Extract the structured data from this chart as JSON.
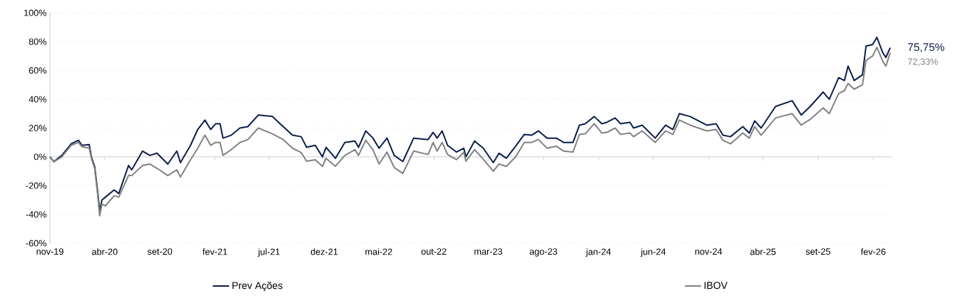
{
  "chart_data": {
    "type": "line",
    "x": [
      "2019-11-01",
      "2019-11-12",
      "2019-12-04",
      "2019-12-30",
      "2020-01-19",
      "2020-01-29",
      "2020-02-18",
      "2020-02-24",
      "2020-03-04",
      "2020-03-12",
      "2020-03-18",
      "2020-03-24",
      "2020-04-03",
      "2020-04-27",
      "2020-05-10",
      "2020-06-06",
      "2020-06-15",
      "2020-07-15",
      "2020-08-04",
      "2020-08-24",
      "2020-09-23",
      "2020-10-18",
      "2020-10-28",
      "2020-11-25",
      "2020-12-15",
      "2021-01-04",
      "2021-01-20",
      "2021-02-03",
      "2021-02-15",
      "2021-02-23",
      "2021-03-18",
      "2021-04-11",
      "2021-05-03",
      "2021-06-01",
      "2021-07-10",
      "2021-08-09",
      "2021-09-04",
      "2021-09-28",
      "2021-10-13",
      "2021-11-06",
      "2021-11-26",
      "2021-12-06",
      "2022-01-01",
      "2022-01-27",
      "2022-02-24",
      "2022-03-06",
      "2022-03-26",
      "2022-04-15",
      "2022-05-02",
      "2022-05-24",
      "2022-06-13",
      "2022-07-07",
      "2022-08-06",
      "2022-09-15",
      "2022-09-29",
      "2022-10-10",
      "2022-10-24",
      "2022-11-08",
      "2022-12-03",
      "2022-12-23",
      "2022-12-29",
      "2023-01-22",
      "2023-02-15",
      "2023-03-15",
      "2023-03-31",
      "2023-04-20",
      "2023-05-16",
      "2023-06-09",
      "2023-06-29",
      "2023-07-18",
      "2023-08-11",
      "2023-09-06",
      "2023-09-26",
      "2023-10-22",
      "2023-11-09",
      "2023-11-25",
      "2023-12-20",
      "2024-01-10",
      "2024-01-24",
      "2024-02-16",
      "2024-03-02",
      "2024-03-28",
      "2024-04-07",
      "2024-05-01",
      "2024-06-06",
      "2024-07-05",
      "2024-07-25",
      "2024-08-12",
      "2024-09-11",
      "2024-10-27",
      "2024-11-22",
      "2024-12-11",
      "2025-01-01",
      "2025-02-04",
      "2025-02-22",
      "2025-03-09",
      "2025-03-27",
      "2025-05-06",
      "2025-06-21",
      "2025-07-16",
      "2025-08-10",
      "2025-09-15",
      "2025-10-02",
      "2025-10-28",
      "2025-11-13",
      "2025-11-23",
      "2025-12-10",
      "2026-01-02",
      "2026-01-12",
      "2026-01-30",
      "2026-02-11",
      "2026-02-28",
      "2026-03-08",
      "2026-03-20"
    ],
    "series": [
      {
        "name": "Prev Ações",
        "color": "#0b1f4b",
        "values": [
          0,
          -3.3,
          1,
          9,
          11.5,
          8,
          8.5,
          0,
          -6.6,
          -23,
          -38,
          -30,
          -28,
          -23,
          -25.5,
          -6,
          -9,
          4,
          1,
          2.5,
          -5,
          4,
          -4,
          8,
          19,
          25.5,
          19,
          23,
          23,
          13,
          15,
          20,
          21,
          29,
          28,
          21,
          15,
          14,
          6.6,
          8,
          0,
          6.6,
          -1,
          10,
          11,
          6.6,
          18,
          13,
          6,
          13,
          1,
          -3.3,
          13,
          12,
          17,
          13,
          18,
          8,
          3.3,
          6,
          0,
          11,
          6,
          -4,
          2.5,
          -1,
          7.4,
          15.6,
          15,
          18,
          13,
          13,
          10,
          10,
          22,
          23,
          28,
          23,
          24,
          27,
          23,
          24,
          20,
          22,
          13,
          22,
          19,
          30,
          28,
          22,
          23,
          15,
          14,
          21,
          16.5,
          25,
          20,
          35,
          39,
          29,
          35,
          45,
          40,
          55,
          53,
          63,
          53,
          57,
          77,
          78,
          83,
          72,
          69,
          75.75
        ]
      },
      {
        "name": "IBOV",
        "color": "#828282",
        "values": [
          0,
          -3.5,
          0,
          8,
          10,
          7,
          6,
          -1,
          -8,
          -25,
          -41,
          -33,
          -34,
          -27,
          -28,
          -13,
          -13,
          -6,
          -5,
          -8,
          -13,
          -9,
          -14,
          -2,
          6,
          15,
          8,
          10,
          10,
          1,
          5,
          10,
          12,
          20,
          16,
          12,
          6,
          3,
          -3,
          -2,
          -6.6,
          -1,
          -6.6,
          1,
          5,
          1,
          11.5,
          5,
          -5,
          3.3,
          -7.4,
          -11.5,
          4,
          1.6,
          10,
          4,
          10,
          1.6,
          -2,
          3.3,
          -3,
          5,
          -1.6,
          -10,
          -5,
          -6.6,
          0,
          10,
          10,
          12,
          6,
          7.4,
          4,
          3.3,
          15.6,
          16,
          23,
          16.5,
          17,
          20,
          15.6,
          16.5,
          14,
          18,
          10,
          18,
          15.6,
          25.5,
          22,
          18,
          19,
          11.5,
          9,
          16.5,
          13,
          21,
          15,
          27,
          30,
          22,
          26,
          34,
          30,
          44,
          46,
          51,
          47,
          50,
          67,
          70,
          76,
          66,
          63,
          72.33
        ]
      }
    ],
    "xlim": [
      "2019-11-01",
      "2026-03-24"
    ],
    "xticks": [
      {
        "value": "2019-11-01",
        "label": "nov-19"
      },
      {
        "value": "2020-04-01",
        "label": "abr-20"
      },
      {
        "value": "2020-09-01",
        "label": "set-20"
      },
      {
        "value": "2021-02-01",
        "label": "fev-21"
      },
      {
        "value": "2021-07-01",
        "label": "jul-21"
      },
      {
        "value": "2021-12-01",
        "label": "dez-21"
      },
      {
        "value": "2022-05-01",
        "label": "mai-22"
      },
      {
        "value": "2022-10-01",
        "label": "out-22"
      },
      {
        "value": "2023-03-01",
        "label": "mar-23"
      },
      {
        "value": "2023-08-01",
        "label": "ago-23"
      },
      {
        "value": "2024-01-01",
        "label": "jan-24"
      },
      {
        "value": "2024-06-01",
        "label": "jun-24"
      },
      {
        "value": "2024-11-01",
        "label": "nov-24"
      },
      {
        "value": "2025-04-01",
        "label": "abr-25"
      },
      {
        "value": "2025-09-01",
        "label": "set-25"
      },
      {
        "value": "2026-02-01",
        "label": "fev-26"
      }
    ],
    "ylim": [
      -60,
      100
    ],
    "yticks": [
      {
        "value": -60,
        "label": "-60%"
      },
      {
        "value": -40,
        "label": "-40%"
      },
      {
        "value": -20,
        "label": "-20%"
      },
      {
        "value": 0,
        "label": "0%"
      },
      {
        "value": 20,
        "label": "20%"
      },
      {
        "value": 40,
        "label": "40%"
      },
      {
        "value": 60,
        "label": "60%"
      },
      {
        "value": 80,
        "label": "80%"
      },
      {
        "value": 100,
        "label": "100%"
      }
    ],
    "grid": "y",
    "legend": "bottom",
    "annotations": [
      {
        "text": "75,75%",
        "x": "2026-03-20",
        "y": 75.75
      },
      {
        "text": "72,33%",
        "x": "2026-03-20",
        "y": 72.33
      }
    ]
  }
}
